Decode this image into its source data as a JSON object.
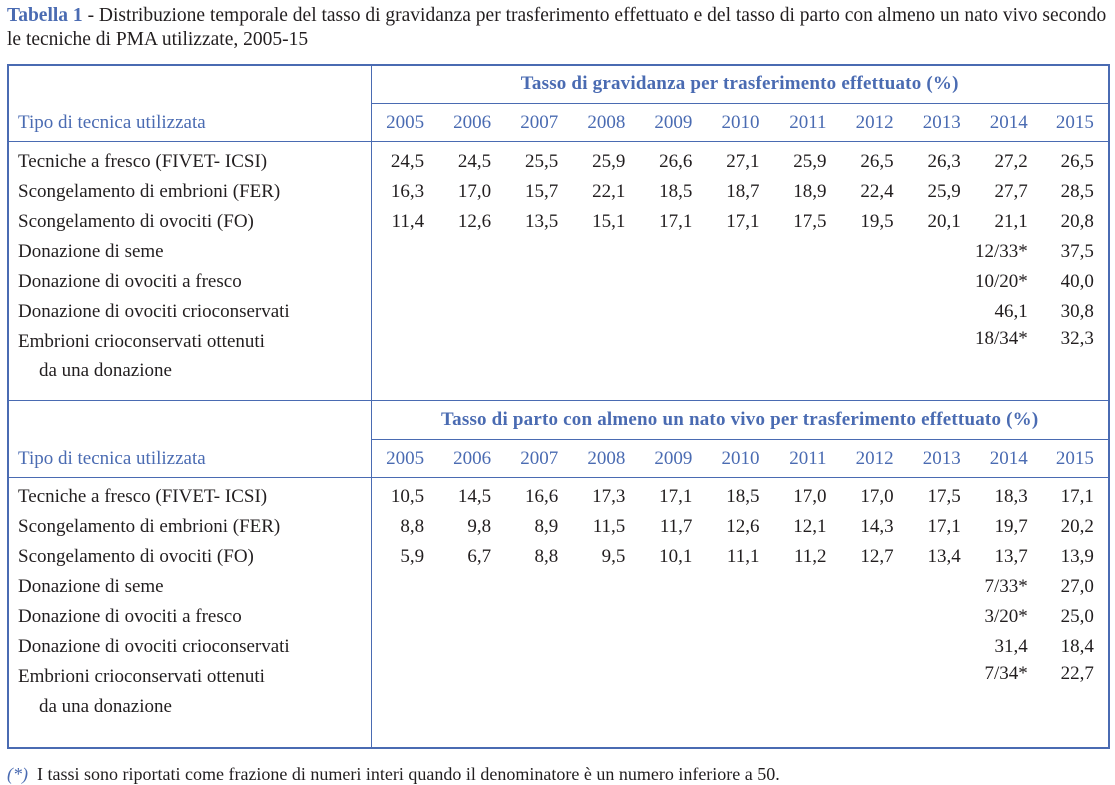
{
  "caption": {
    "label": "Tabella 1",
    "text": " - Distribuzione temporale del tasso di gravidanza per trasferimento effettuato e del tasso di parto con almeno un nato vivo secondo le tecniche di PMA utilizzate, 2005-15"
  },
  "row_header": "Tipo di tecnica utilizzata",
  "years": [
    "2005",
    "2006",
    "2007",
    "2008",
    "2009",
    "2010",
    "2011",
    "2012",
    "2013",
    "2014",
    "2015"
  ],
  "sections": [
    {
      "title": "Tasso di gravidanza per trasferimento effettuato (%)",
      "rows": [
        {
          "label": "Tecniche a fresco (FIVET- ICSI)",
          "label2": "",
          "values": [
            "24,5",
            "24,5",
            "25,5",
            "25,9",
            "26,6",
            "27,1",
            "25,9",
            "26,5",
            "26,3",
            "27,2",
            "26,5"
          ]
        },
        {
          "label": "Scongelamento di embrioni (FER)",
          "label2": "",
          "values": [
            "16,3",
            "17,0",
            "15,7",
            "22,1",
            "18,5",
            "18,7",
            "18,9",
            "22,4",
            "25,9",
            "27,7",
            "28,5"
          ]
        },
        {
          "label": "Scongelamento di ovociti (FO)",
          "label2": "",
          "values": [
            "11,4",
            "12,6",
            "13,5",
            "15,1",
            "17,1",
            "17,1",
            "17,5",
            "19,5",
            "20,1",
            "21,1",
            "20,8"
          ]
        },
        {
          "label": "Donazione di seme",
          "label2": "",
          "values": [
            "",
            "",
            "",
            "",
            "",
            "",
            "",
            "",
            "",
            "12/33*",
            "37,5"
          ]
        },
        {
          "label": "Donazione di ovociti a fresco",
          "label2": "",
          "values": [
            "",
            "",
            "",
            "",
            "",
            "",
            "",
            "",
            "",
            "10/20*",
            "40,0"
          ]
        },
        {
          "label": "Donazione di ovociti crioconservati",
          "label2": "",
          "values": [
            "",
            "",
            "",
            "",
            "",
            "",
            "",
            "",
            "",
            "46,1",
            "30,8"
          ]
        },
        {
          "label": "Embrioni crioconservati ottenuti",
          "label2": "da una donazione",
          "values": [
            "",
            "",
            "",
            "",
            "",
            "",
            "",
            "",
            "",
            "18/34*",
            "32,3"
          ]
        }
      ]
    },
    {
      "title": "Tasso di parto con almeno un nato vivo per trasferimento effettuato (%)",
      "rows": [
        {
          "label": "Tecniche a fresco (FIVET- ICSI)",
          "label2": "",
          "values": [
            "10,5",
            "14,5",
            "16,6",
            "17,3",
            "17,1",
            "18,5",
            "17,0",
            "17,0",
            "17,5",
            "18,3",
            "17,1"
          ]
        },
        {
          "label": "Scongelamento di embrioni (FER)",
          "label2": "",
          "values": [
            "8,8",
            "9,8",
            "8,9",
            "11,5",
            "11,7",
            "12,6",
            "12,1",
            "14,3",
            "17,1",
            "19,7",
            "20,2"
          ]
        },
        {
          "label": "Scongelamento di ovociti (FO)",
          "label2": "",
          "values": [
            "5,9",
            "6,7",
            "8,8",
            "9,5",
            "10,1",
            "11,1",
            "11,2",
            "12,7",
            "13,4",
            "13,7",
            "13,9"
          ]
        },
        {
          "label": "Donazione di seme",
          "label2": "",
          "values": [
            "",
            "",
            "",
            "",
            "",
            "",
            "",
            "",
            "",
            "7/33*",
            "27,0"
          ]
        },
        {
          "label": "Donazione di ovociti a fresco",
          "label2": "",
          "values": [
            "",
            "",
            "",
            "",
            "",
            "",
            "",
            "",
            "",
            "3/20*",
            "25,0"
          ]
        },
        {
          "label": "Donazione di ovociti crioconservati",
          "label2": "",
          "values": [
            "",
            "",
            "",
            "",
            "",
            "",
            "",
            "",
            "",
            "31,4",
            "18,4"
          ]
        },
        {
          "label": "Embrioni crioconservati ottenuti",
          "label2": "da una donazione",
          "values": [
            "",
            "",
            "",
            "",
            "",
            "",
            "",
            "",
            "",
            "7/34*",
            "22,7"
          ]
        }
      ]
    }
  ],
  "footnote": {
    "marker": "(*)",
    "text": "I tassi sono riportati come frazione di numeri interi quando il denominatore è un numero inferiore a 50."
  },
  "colors": {
    "accent_blue": "#4a6bb2",
    "text_dark": "#221e1f"
  }
}
